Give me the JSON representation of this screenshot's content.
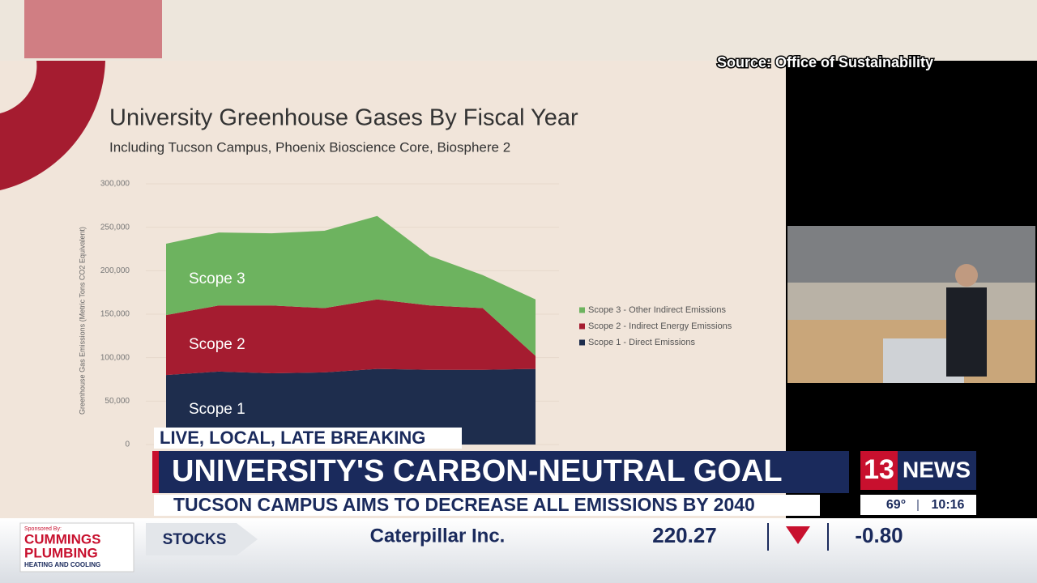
{
  "source": "Source: Office of Sustainability",
  "chart_data": {
    "type": "stacked-area",
    "title": "University Greenhouse Gases By Fiscal Year",
    "subtitle": "Including Tucson Campus, Phoenix Bioscience Core, Biosphere 2",
    "y_label": "Greenhouse Gas Emissions (Metric Tons CO2 Equivalent)",
    "categories": [
      null,
      null,
      null,
      null,
      null,
      null,
      null,
      null
    ],
    "series": [
      {
        "name": "Scope 1 - Direct Emissions",
        "label": "Scope 1",
        "color": "#1e2d4d",
        "values": [
          80000,
          84000,
          82000,
          83000,
          87000,
          86000,
          86000,
          87000
        ]
      },
      {
        "name": "Scope 2 - Indirect Energy Emissions",
        "label": "Scope 2",
        "color": "#a51c30",
        "values": [
          69000,
          76000,
          78000,
          74000,
          80000,
          74000,
          71000,
          15000
        ]
      },
      {
        "name": "Scope 3 - Other Indirect Emissions",
        "label": "Scope 3",
        "color": "#6db35f",
        "values": [
          82000,
          84000,
          83000,
          89000,
          96000,
          57000,
          38000,
          65000
        ]
      }
    ],
    "ylim": [
      0,
      300000
    ],
    "yticks": [
      0,
      {
        "value": 50000,
        "label": "50,000"
      },
      {
        "value": 100000,
        "label": "100,000"
      },
      {
        "value": 150000,
        "label": "150,000"
      },
      {
        "value": 200000,
        "label": "200,000"
      },
      {
        "value": 250000,
        "label": "250,000"
      },
      {
        "value": 300000,
        "label": "300,000"
      }
    ],
    "grid": true,
    "legend": "right"
  },
  "lower_third": {
    "tag": "LIVE, LOCAL, LATE BREAKING",
    "headline": "UNIVERSITY'S CARBON-NEUTRAL GOAL",
    "subhead": "TUCSON CAMPUS AIMS TO DECREASE ALL EMISSIONS BY 2040"
  },
  "station": {
    "number": "13",
    "name": "NEWS",
    "temperature": "69°",
    "time": "10:16"
  },
  "ticker": {
    "sponsor_label": "Sponsored By:",
    "sponsor_line1": "CUMMINGS",
    "sponsor_line2": "PLUMBING",
    "sponsor_line3": "HEATING AND COOLING",
    "section": "STOCKS",
    "company": "Caterpillar Inc.",
    "price": "220.27",
    "change": "-0.80"
  }
}
